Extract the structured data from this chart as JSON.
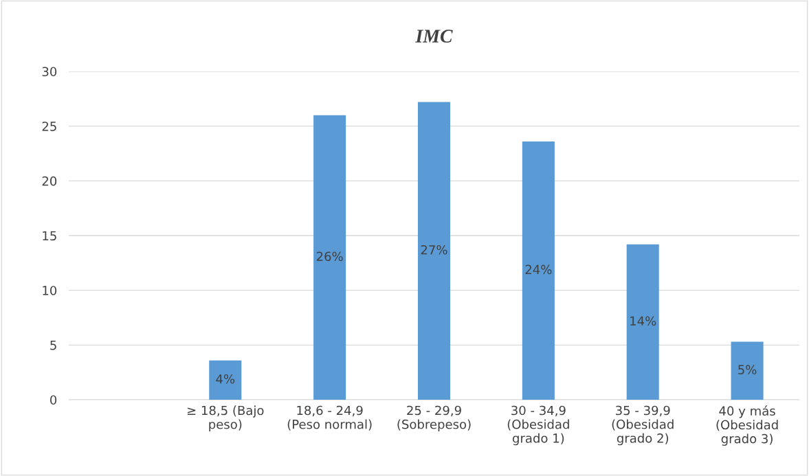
{
  "chart_data": {
    "type": "bar",
    "title": "IMC",
    "categories": [
      null,
      "≥ 18,5 (Bajo\npeso)",
      "18,6 - 24,9\n(Peso normal)",
      "25 - 29,9\n(Sobrepeso)",
      "30 - 34,9\n(Obesidad\ngrado 1)",
      "35 - 39,9\n(Obesidad\ngrado 2)",
      "40 y más\n(Obesidad\ngrado 3)"
    ],
    "values": [
      null,
      3.6,
      26.0,
      27.2,
      23.6,
      14.2,
      5.3
    ],
    "value_labels": [
      null,
      "4%",
      "26%",
      "27%",
      "24%",
      "14%",
      "5%"
    ],
    "color": "#5b9bd5",
    "ylim": [
      0,
      30
    ],
    "yticks": [
      0,
      5,
      10,
      15,
      20,
      25,
      30
    ],
    "grid": "y"
  }
}
